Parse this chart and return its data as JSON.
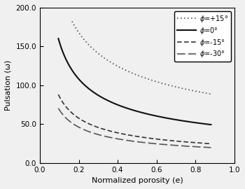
{
  "xlabel": "Normalized porosity (e)",
  "ylabel": "Pulsation (ω)",
  "xlim": [
    0.0,
    1.0
  ],
  "ylim": [
    0.0,
    200.0
  ],
  "xticks": [
    0.0,
    0.2,
    0.4,
    0.6,
    0.8,
    1.0
  ],
  "yticks": [
    0.0,
    50.0,
    100.0,
    150.0,
    200.0
  ],
  "curves": [
    {
      "label": "φ=+15°",
      "A": 83.9,
      "B": 0.431,
      "e_start": 0.165,
      "e_end": 0.88,
      "color": "#555555",
      "linestyle": "dotted",
      "linewidth": 1.2
    },
    {
      "label": "φ=0°",
      "A": 46.0,
      "B": 0.53,
      "e_start": 0.095,
      "e_end": 0.88,
      "color": "#111111",
      "linestyle": "solid",
      "linewidth": 1.5
    },
    {
      "label": "φ=-15°",
      "A": 22.9,
      "B": 0.572,
      "e_start": 0.095,
      "e_end": 0.88,
      "color": "#333333",
      "linestyle": "dashed_short",
      "linewidth": 1.2
    },
    {
      "label": "φ=-30°",
      "A": 18.3,
      "B": 0.572,
      "e_start": 0.095,
      "e_end": 0.88,
      "color": "#555555",
      "linestyle": "dashed_long",
      "linewidth": 1.2
    }
  ],
  "legend_fontsize": 7,
  "axis_fontsize": 8,
  "tick_fontsize": 7.5,
  "figsize": [
    3.5,
    2.7
  ],
  "dpi": 100
}
